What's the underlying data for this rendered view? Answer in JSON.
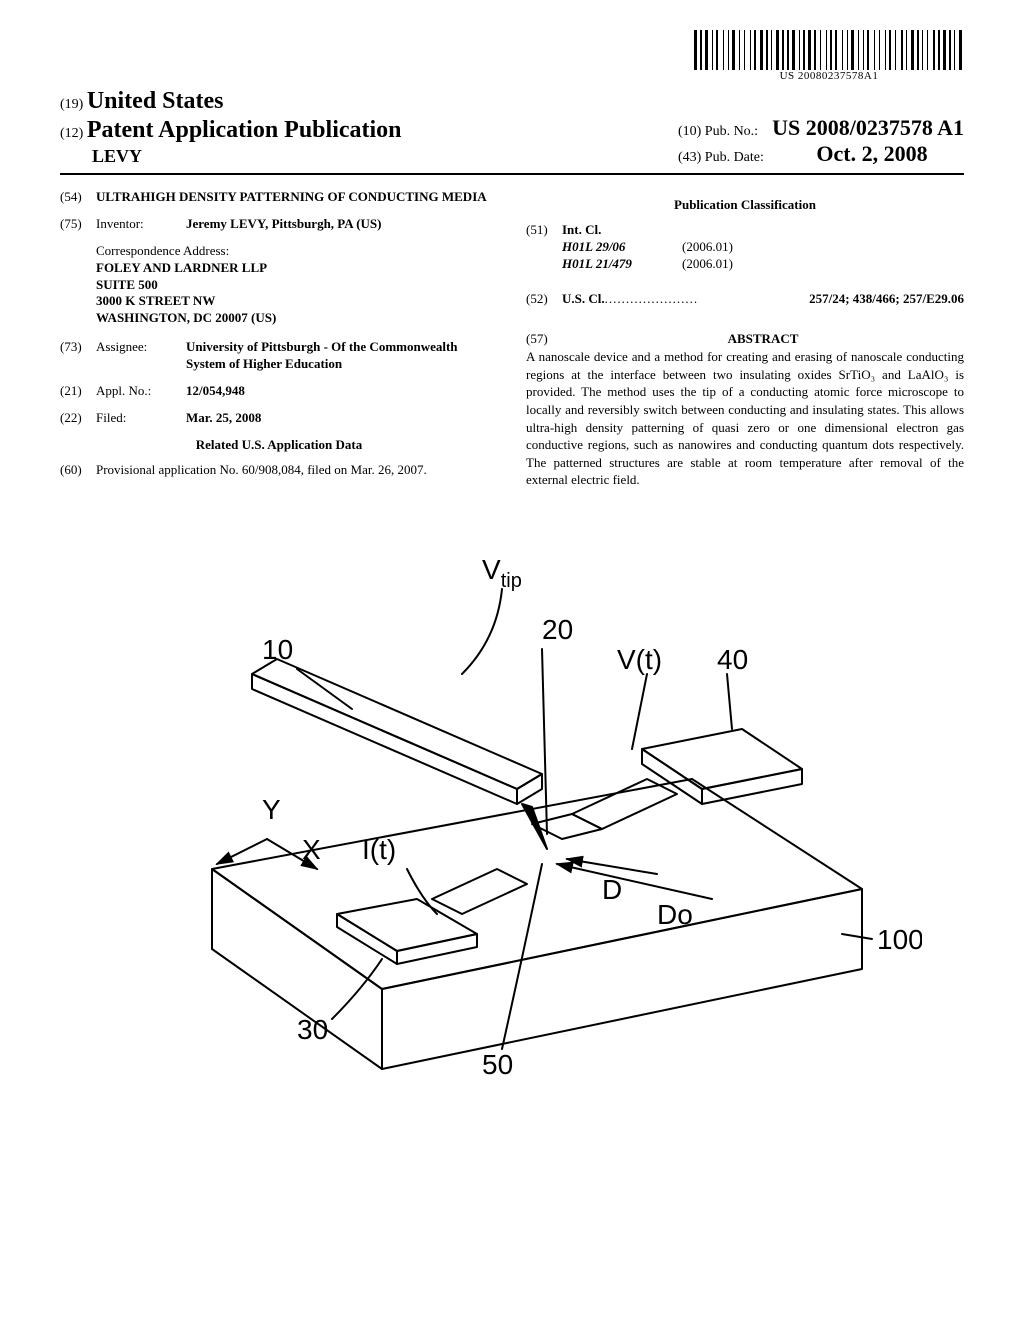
{
  "barcode": {
    "text": "US 20080237578A1",
    "bar_widths": [
      3,
      1,
      2,
      1,
      3,
      2,
      1,
      1,
      2,
      3,
      1,
      2,
      1,
      1,
      3,
      2,
      1,
      2,
      1,
      3,
      1,
      1,
      2,
      2,
      3,
      1,
      2,
      1,
      1,
      2,
      3,
      1,
      2,
      1,
      2,
      1,
      3,
      2,
      1,
      1,
      2,
      1,
      3,
      1,
      2,
      2,
      1,
      3,
      1,
      1,
      2,
      1,
      2,
      3,
      1,
      2,
      1,
      1,
      3,
      2,
      1,
      2,
      1,
      1,
      2,
      3,
      1,
      2,
      1,
      3,
      1,
      1,
      2,
      2,
      1,
      3,
      2,
      1,
      1,
      2,
      3,
      1,
      2,
      1,
      1,
      2,
      1,
      3,
      2,
      1,
      2,
      1,
      3,
      1,
      2,
      1,
      1,
      2,
      3,
      1
    ]
  },
  "header": {
    "code19": "(19)",
    "country": "United States",
    "code12": "(12)",
    "pubtype": "Patent Application Publication",
    "applicant_name": "LEVY",
    "code10": "(10)",
    "pubno_label": "Pub. No.:",
    "pubno": "US 2008/0237578 A1",
    "code43": "(43)",
    "pubdate_label": "Pub. Date:",
    "pubdate": "Oct. 2, 2008"
  },
  "left": {
    "f54": {
      "code": "(54)",
      "title": "ULTRAHIGH DENSITY PATTERNING OF CONDUCTING MEDIA"
    },
    "f75": {
      "code": "(75)",
      "label": "Inventor:",
      "value": "Jeremy LEVY, Pittsburgh, PA (US)"
    },
    "corr_label": "Correspondence Address:",
    "corr_lines": [
      "FOLEY AND LARDNER LLP",
      "SUITE 500",
      "3000 K STREET NW",
      "WASHINGTON, DC 20007 (US)"
    ],
    "f73": {
      "code": "(73)",
      "label": "Assignee:",
      "value": "University of Pittsburgh - Of the Commonwealth System of Higher Education"
    },
    "f21": {
      "code": "(21)",
      "label": "Appl. No.:",
      "value": "12/054,948"
    },
    "f22": {
      "code": "(22)",
      "label": "Filed:",
      "value": "Mar. 25, 2008"
    },
    "related_heading": "Related U.S. Application Data",
    "f60": {
      "code": "(60)",
      "value": "Provisional application No. 60/908,084, filed on Mar. 26, 2007."
    }
  },
  "right": {
    "pubclass_heading": "Publication Classification",
    "f51": {
      "code": "(51)",
      "label": "Int. Cl.",
      "rows": [
        {
          "code": "H01L 29/06",
          "date": "(2006.01)"
        },
        {
          "code": "H01L 21/479",
          "date": "(2006.01)"
        }
      ]
    },
    "f52": {
      "code": "(52)",
      "label": "U.S. Cl.",
      "value": "257/24; 438/466; 257/E29.06"
    },
    "f57": {
      "code": "(57)",
      "heading": "ABSTRACT"
    },
    "abstract": "A nanoscale device and a method for creating and erasing of nanoscale conducting regions at the interface between two insulating oxides SrTiO₃ and LaAlO₃ is provided. The method uses the tip of a conducting atomic force microscope to locally and reversibly switch between conducting and insulating states. This allows ultra-high density patterning of quasi zero or one dimensional electron gas conductive regions, such as nanowires and conducting quantum dots respectively. The patterned structures are stable at room temperature after removal of the external electric field."
  },
  "figure": {
    "labels": {
      "vtip": "V",
      "vtip_sub": "tip",
      "n10": "10",
      "n20": "20",
      "vt": "V(t)",
      "n40": "40",
      "y": "Y",
      "x": "X",
      "it": "I(t)",
      "d": "D",
      "do": "Do",
      "n100": "100",
      "n30": "30",
      "n50": "50"
    },
    "style": {
      "stroke": "#000000",
      "stroke_width": 2,
      "fill": "#ffffff",
      "label_fontsize": 28,
      "label_fontfamily": "Arial, sans-serif",
      "label_fontweight": "normal"
    }
  }
}
